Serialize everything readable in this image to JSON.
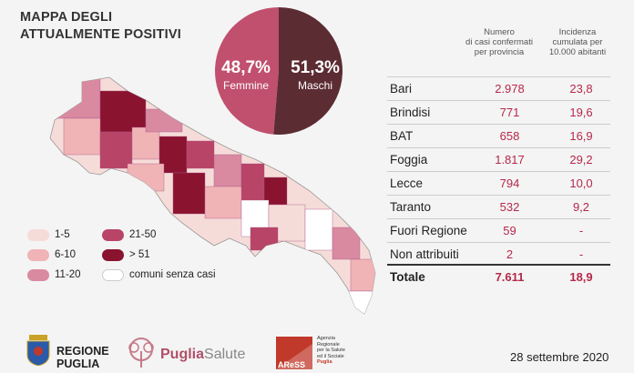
{
  "title": {
    "line1": "MAPPA DEGLI",
    "line2": "ATTUALMENTE POSITIVI"
  },
  "gender": {
    "female": {
      "pct": "48,7%",
      "label": "Femmine",
      "color": "#c0506e",
      "value": 48.7
    },
    "male": {
      "pct": "51,3%",
      "label": "Maschi",
      "color": "#5c2c33",
      "value": 51.3
    }
  },
  "table": {
    "header_cases": [
      "Numero",
      "di casi confermati",
      "per provincia"
    ],
    "header_incidence": [
      "Incidenza",
      "cumulata per",
      "10.000 abitanti"
    ],
    "rows": [
      {
        "name": "Bari",
        "cases": "2.978",
        "incidence": "23,8"
      },
      {
        "name": "Brindisi",
        "cases": "771",
        "incidence": "19,6"
      },
      {
        "name": "BAT",
        "cases": "658",
        "incidence": "16,9"
      },
      {
        "name": "Foggia",
        "cases": "1.817",
        "incidence": "29,2"
      },
      {
        "name": "Lecce",
        "cases": "794",
        "incidence": "10,0"
      },
      {
        "name": "Taranto",
        "cases": "532",
        "incidence": "9,2"
      },
      {
        "name": "Fuori Regione",
        "cases": "59",
        "incidence": "-"
      },
      {
        "name": "Non attribuiti",
        "cases": "2",
        "incidence": "-"
      }
    ],
    "total": {
      "name": "Totale",
      "cases": "7.611",
      "incidence": "18,9"
    }
  },
  "legend": [
    {
      "label": "1-5",
      "color": "#f6dcd9"
    },
    {
      "label": "6-10",
      "color": "#f0b4b6"
    },
    {
      "label": "11-20",
      "color": "#d98aa1"
    },
    {
      "label": "21-50",
      "color": "#b84467"
    },
    {
      "label": "> 51",
      "color": "#8a1330"
    },
    {
      "label": "comuni senza casi",
      "color": "#ffffff"
    }
  ],
  "footer": {
    "regione": {
      "line1": "REGIONE",
      "line2": "PUGLIA"
    },
    "puglia_salute": {
      "part1": "Puglia",
      "part2": "Salute"
    },
    "aress": {
      "name": "AReSS",
      "desc": [
        "Agenzia",
        "Regionale",
        "per la Salute",
        "ed il Sociale",
        "Puglia"
      ]
    },
    "date": "28 settembre 2020"
  }
}
